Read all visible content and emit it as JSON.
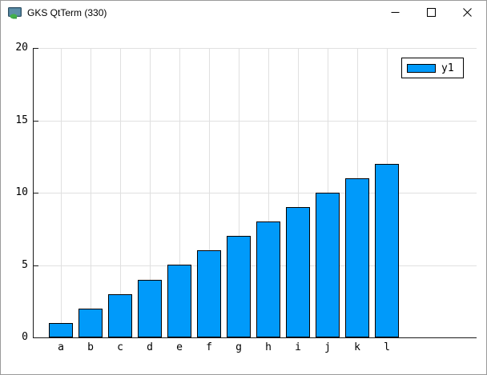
{
  "window": {
    "title": "GKS QtTerm (330)",
    "control_icons": [
      "minimize-icon",
      "maximize-icon",
      "close-icon"
    ]
  },
  "chart_data": {
    "type": "bar",
    "title": "",
    "xlabel": "",
    "ylabel": "",
    "categories": [
      "a",
      "b",
      "c",
      "d",
      "e",
      "f",
      "g",
      "h",
      "i",
      "j",
      "k",
      "l"
    ],
    "series": [
      {
        "name": "y1",
        "values": [
          1,
          2,
          3,
          4,
          5,
          6,
          7,
          8,
          9,
          10,
          11,
          12
        ]
      }
    ],
    "ylim": [
      0,
      20
    ],
    "yticks": [
      0,
      5,
      10,
      15,
      20
    ],
    "grid": true,
    "legend_position": "top-right",
    "colors": {
      "bar_fill": "#009AFA",
      "bar_border": "#000000",
      "grid": "#E0E0E0",
      "axis": "#1A1A1A"
    }
  }
}
